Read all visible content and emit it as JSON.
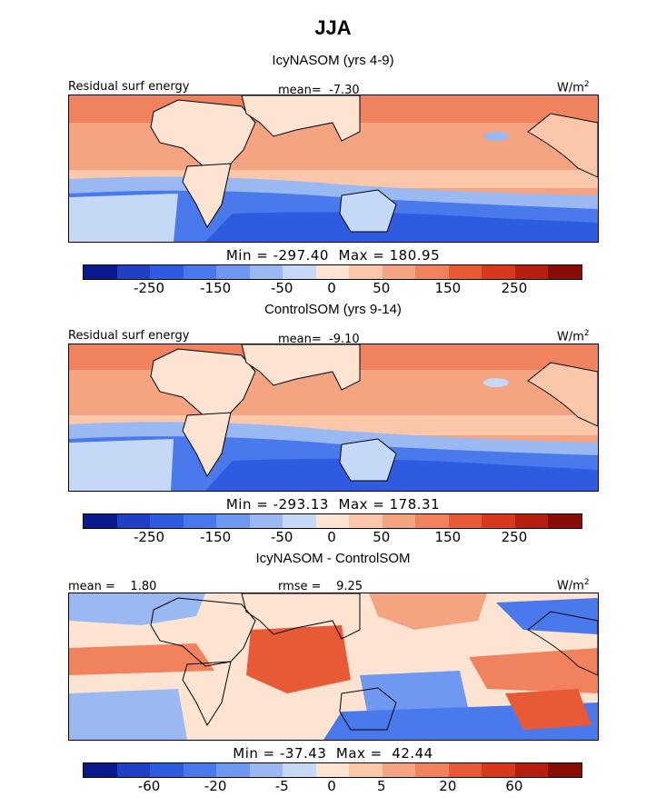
{
  "title": "JJA",
  "units_label": "W/m",
  "units_exponent": "2",
  "panels": [
    {
      "subtitle": "IcyNASOM (yrs 4-9)",
      "field_label": "Residual surf energy",
      "mean_label": "mean=  -7.30",
      "min_max": "Min = -297.40  Max = 180.95",
      "color_ticks": [
        "-250",
        "-150",
        "-50",
        "0",
        "50",
        "150",
        "250"
      ]
    },
    {
      "subtitle": "ControlSOM (yrs 9-14)",
      "field_label": "Residual surf energy",
      "mean_label": "mean=  -9.10",
      "min_max": "Min = -293.13  Max = 178.31",
      "color_ticks": [
        "-250",
        "-150",
        "-50",
        "0",
        "50",
        "150",
        "250"
      ]
    },
    {
      "subtitle": "IcyNASOM - ControlSOM",
      "field_label": "mean =    1.80",
      "mean_label": "rmse =    9.25",
      "min_max": "Min = -37.43  Max =  42.44",
      "color_ticks": [
        "-60",
        "-20",
        "-5",
        "0",
        "5",
        "20",
        "60"
      ]
    }
  ],
  "palette": [
    "#0a1a8c",
    "#1f3fc4",
    "#2f5be0",
    "#4a79ec",
    "#6f98f0",
    "#9ab8f2",
    "#c5d8f5",
    "#fde4d2",
    "#fbc7aa",
    "#f5a482",
    "#f0835e",
    "#e85a36",
    "#d8391c",
    "#b51f10",
    "#8a0c06"
  ]
}
